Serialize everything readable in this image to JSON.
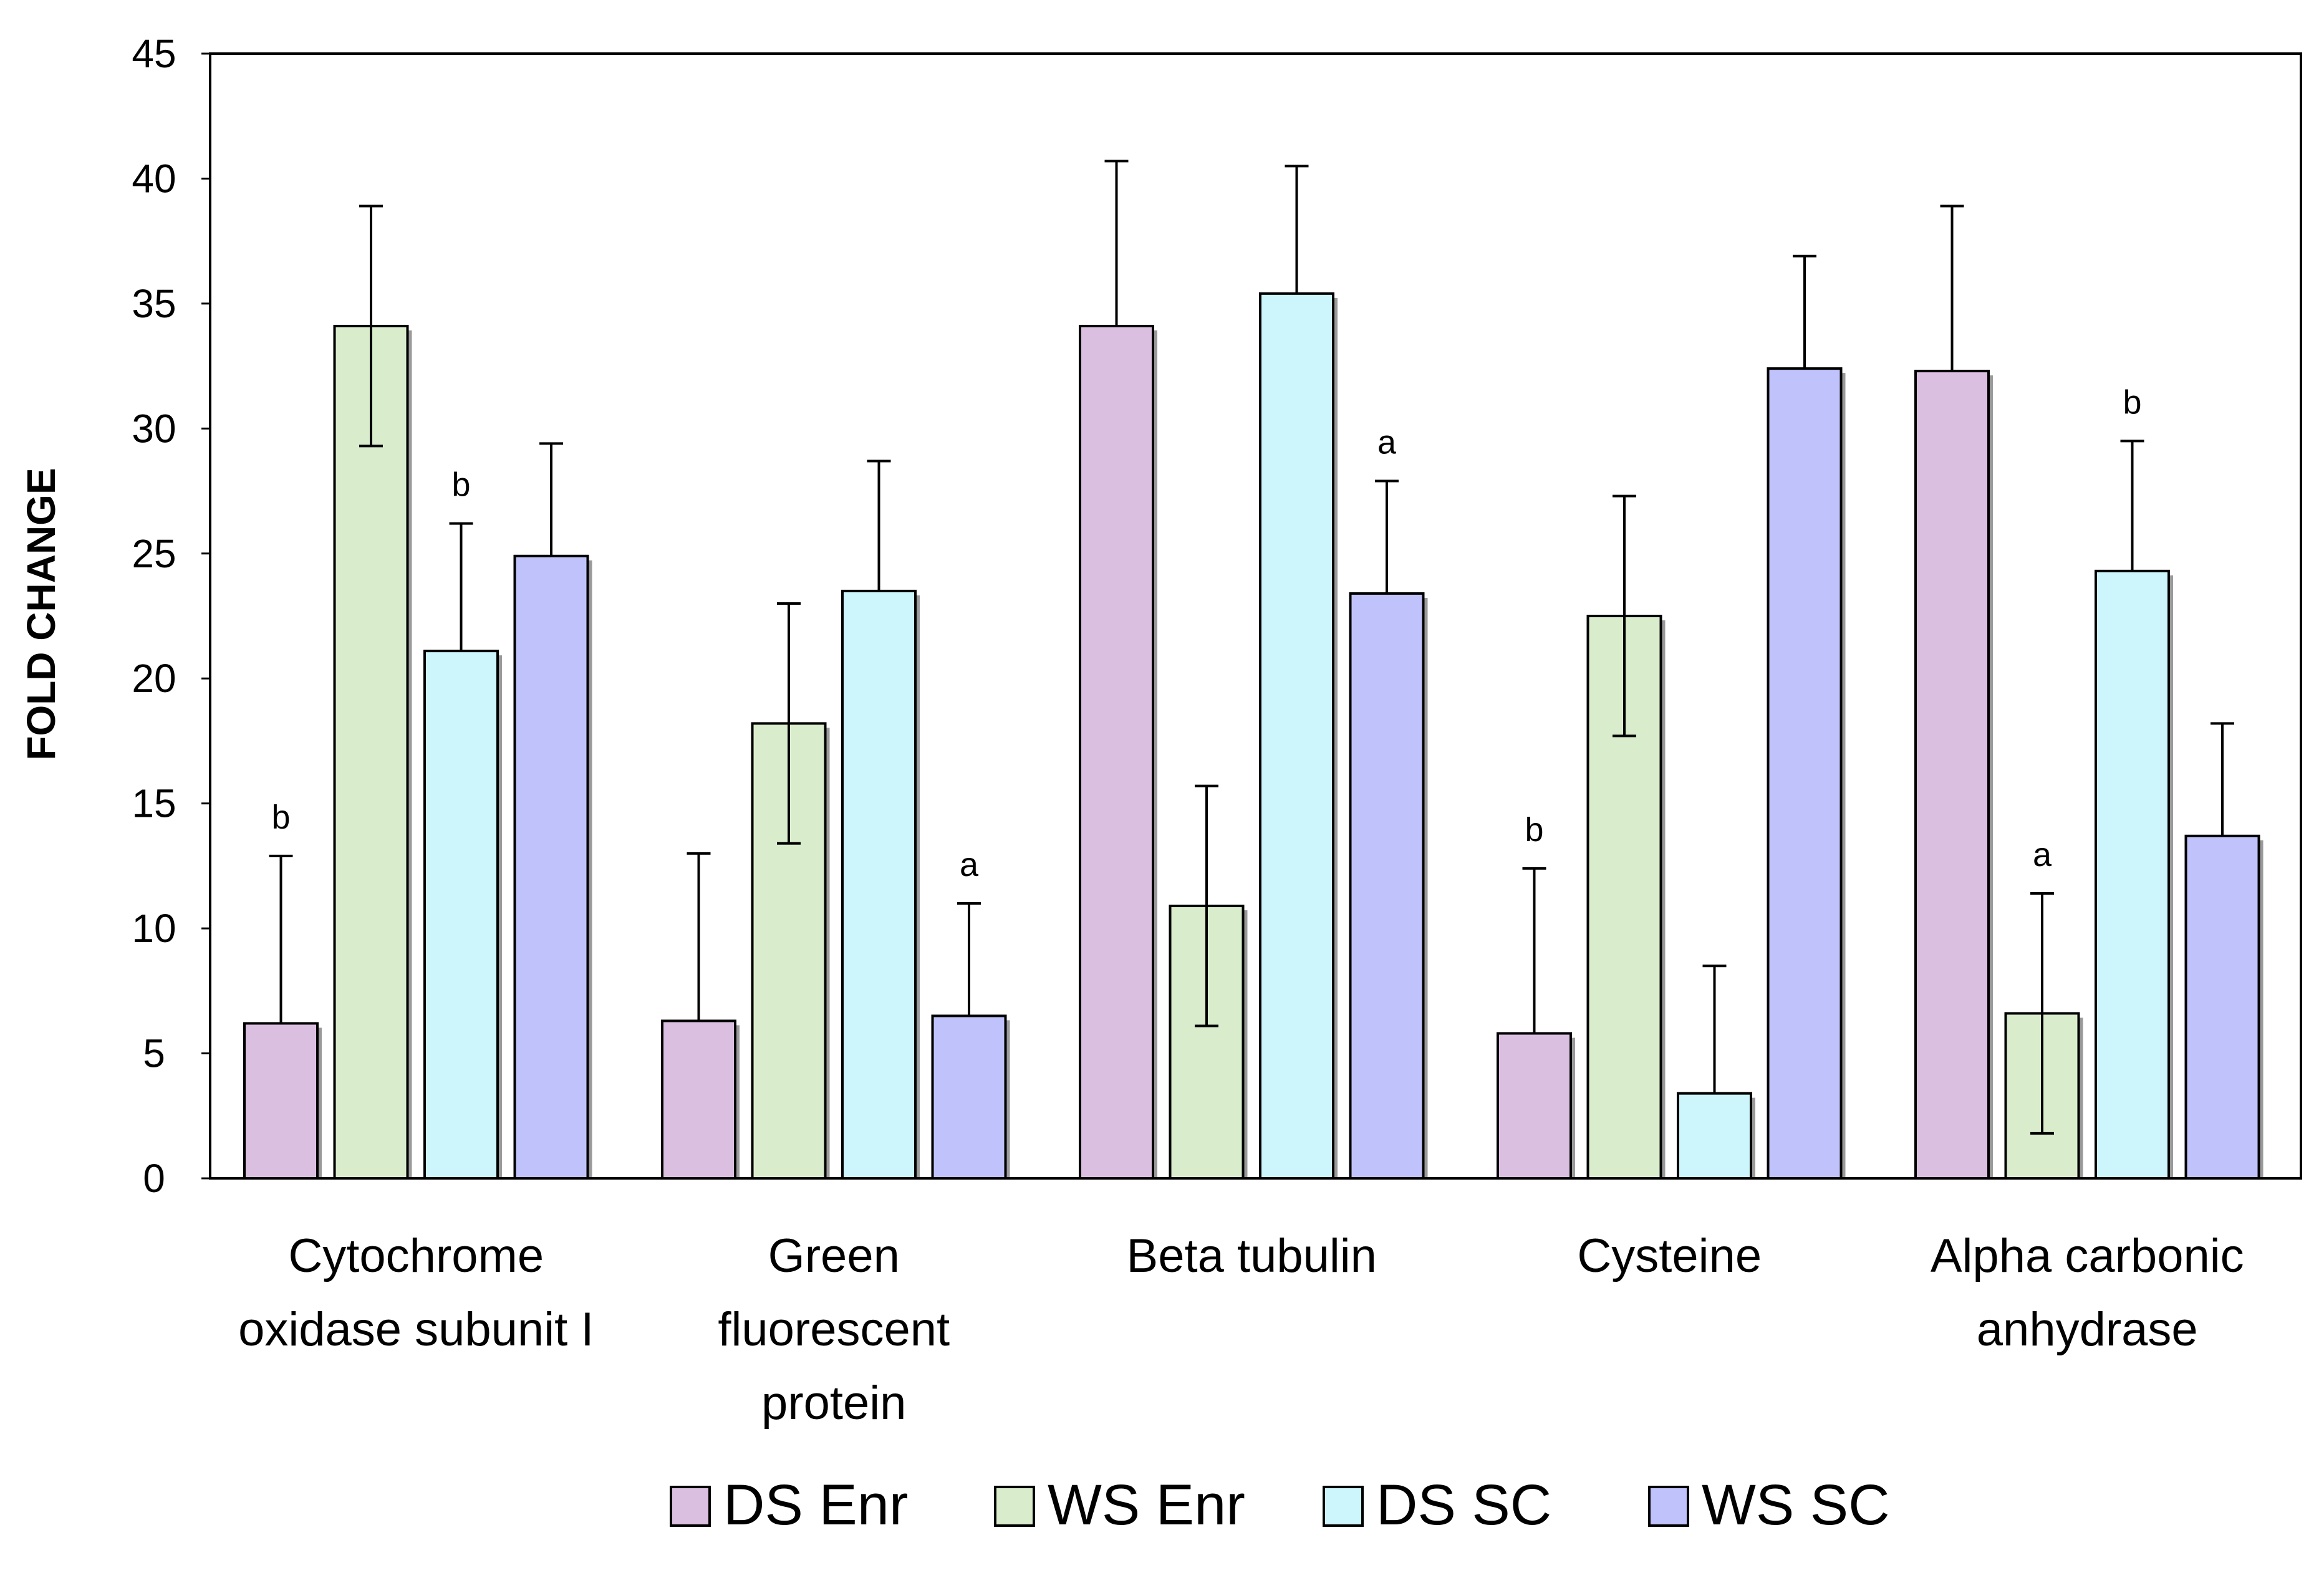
{
  "chart_data": {
    "type": "bar",
    "title": "",
    "xlabel": "",
    "ylabel": "FOLD CHANGE",
    "ylim": [
      0,
      45
    ],
    "yticks": [
      0,
      5,
      10,
      15,
      20,
      25,
      30,
      35,
      40,
      45
    ],
    "grid": false,
    "legend_position": "bottom",
    "categories": [
      [
        "Cytochrome",
        "oxidase subunit I"
      ],
      [
        "Green",
        "fluorescent",
        "protein"
      ],
      [
        "Beta tubulin"
      ],
      [
        "Cysteine"
      ],
      [
        "Alpha carbonic",
        "anhydrase"
      ]
    ],
    "series": [
      {
        "name": "DS Enr",
        "color": "#dbbfe0",
        "values": [
          6.2,
          6.3,
          34.1,
          5.8,
          32.3
        ],
        "error_upper": [
          12.9,
          13.0,
          40.7,
          12.4,
          38.9
        ],
        "labels": [
          "b",
          "",
          "",
          "b",
          ""
        ]
      },
      {
        "name": "WS Enr",
        "color": "#d9edcd",
        "values": [
          34.1,
          18.2,
          10.9,
          22.5,
          6.6
        ],
        "error_upper": [
          38.9,
          23.0,
          15.7,
          27.3,
          11.4
        ],
        "error_lower": [
          29.3,
          13.4,
          6.1,
          17.7,
          1.8
        ],
        "labels": [
          "",
          "",
          "",
          "",
          "a"
        ]
      },
      {
        "name": "DS SC",
        "color": "#ccf6fb",
        "values": [
          21.1,
          23.5,
          35.4,
          3.4,
          24.3
        ],
        "error_upper": [
          26.2,
          28.7,
          40.5,
          8.5,
          29.5
        ],
        "labels": [
          "b",
          "",
          "",
          "",
          "b"
        ]
      },
      {
        "name": "WS SC",
        "color": "#c0c3fb",
        "values": [
          24.9,
          6.5,
          23.4,
          32.4,
          13.7
        ],
        "error_upper": [
          29.4,
          11.0,
          27.9,
          36.9,
          18.2
        ],
        "labels": [
          "",
          "a",
          "a",
          "",
          ""
        ]
      }
    ]
  }
}
